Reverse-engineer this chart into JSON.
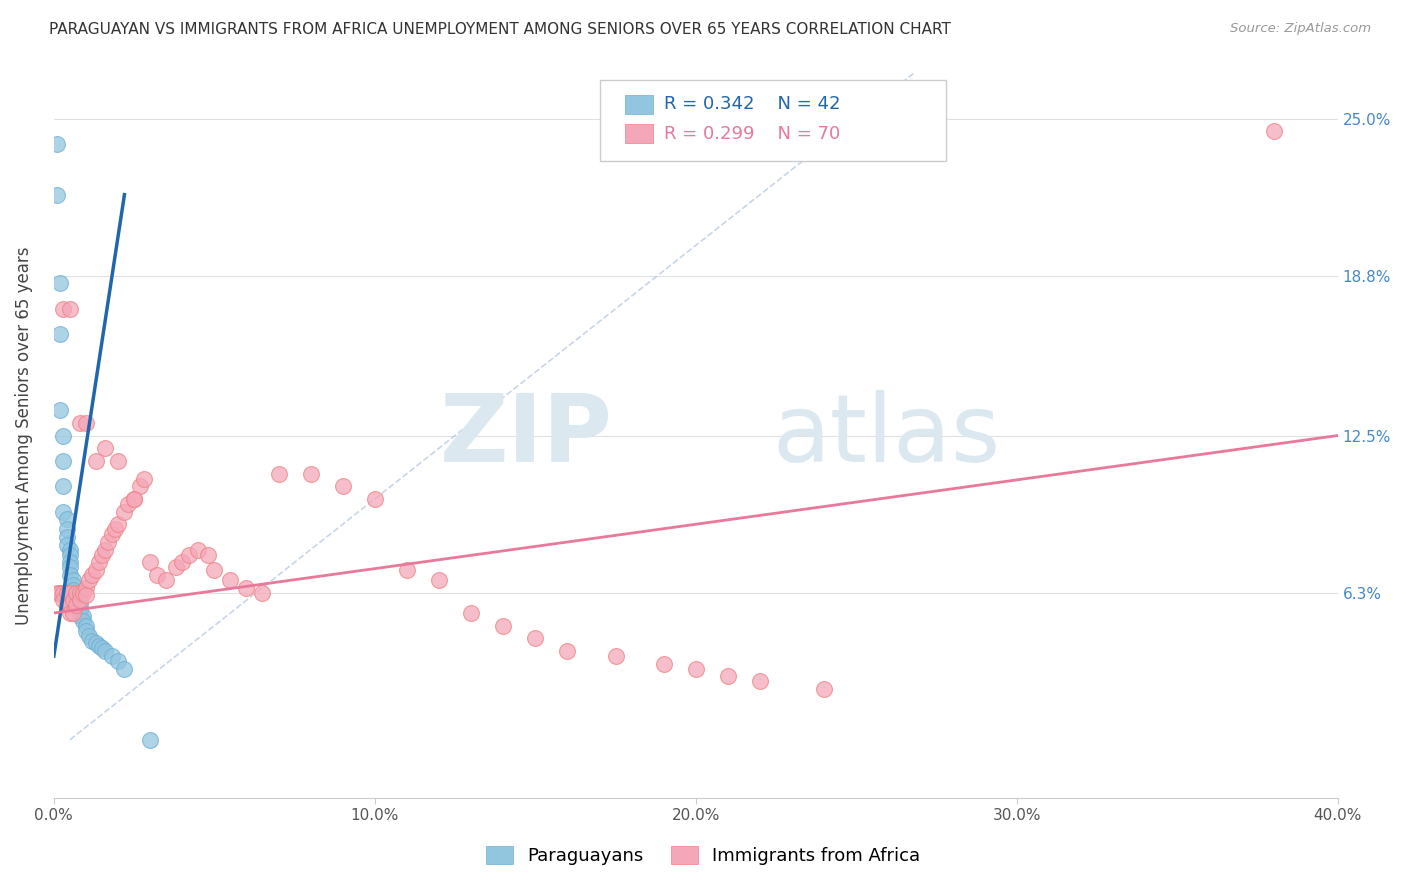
{
  "title": "PARAGUAYAN VS IMMIGRANTS FROM AFRICA UNEMPLOYMENT AMONG SENIORS OVER 65 YEARS CORRELATION CHART",
  "source": "Source: ZipAtlas.com",
  "ylabel": "Unemployment Among Seniors over 65 years",
  "ytick_labels": [
    "6.3%",
    "12.5%",
    "18.8%",
    "25.0%"
  ],
  "ytick_values": [
    0.063,
    0.125,
    0.188,
    0.25
  ],
  "xlim": [
    0.0,
    0.4
  ],
  "ylim": [
    -0.018,
    0.268
  ],
  "xtick_positions": [
    0.0,
    0.1,
    0.2,
    0.3,
    0.4
  ],
  "xtick_labels": [
    "0.0%",
    "10.0%",
    "20.0%",
    "30.0%",
    "40.0%"
  ],
  "legend_blue_r": "R = 0.342",
  "legend_blue_n": "N = 42",
  "legend_pink_r": "R = 0.299",
  "legend_pink_n": "N = 70",
  "legend_blue_label": "Paraguayans",
  "legend_pink_label": "Immigrants from Africa",
  "watermark_zip": "ZIP",
  "watermark_atlas": "atlas",
  "blue_color": "#92c5de",
  "pink_color": "#f4a7b9",
  "blue_line_color": "#2166ac",
  "pink_line_color": "#e8799a",
  "dash_line_color": "#b0c4de",
  "grid_color": "#e0e0e0",
  "bg_color": "#ffffff",
  "blue_scatter_x": [
    0.001,
    0.001,
    0.002,
    0.002,
    0.002,
    0.003,
    0.003,
    0.003,
    0.003,
    0.004,
    0.004,
    0.004,
    0.004,
    0.005,
    0.005,
    0.005,
    0.005,
    0.005,
    0.006,
    0.006,
    0.006,
    0.006,
    0.007,
    0.007,
    0.007,
    0.008,
    0.008,
    0.008,
    0.009,
    0.009,
    0.01,
    0.01,
    0.011,
    0.012,
    0.013,
    0.014,
    0.015,
    0.016,
    0.018,
    0.02,
    0.022,
    0.03
  ],
  "blue_scatter_y": [
    0.24,
    0.22,
    0.185,
    0.165,
    0.135,
    0.125,
    0.115,
    0.105,
    0.095,
    0.092,
    0.088,
    0.085,
    0.082,
    0.08,
    0.078,
    0.075,
    0.073,
    0.07,
    0.068,
    0.066,
    0.064,
    0.062,
    0.062,
    0.06,
    0.058,
    0.058,
    0.056,
    0.054,
    0.054,
    0.052,
    0.05,
    0.048,
    0.046,
    0.044,
    0.043,
    0.042,
    0.041,
    0.04,
    0.038,
    0.036,
    0.033,
    0.005
  ],
  "pink_scatter_x": [
    0.001,
    0.002,
    0.003,
    0.003,
    0.004,
    0.004,
    0.005,
    0.005,
    0.005,
    0.006,
    0.006,
    0.007,
    0.007,
    0.008,
    0.008,
    0.009,
    0.01,
    0.01,
    0.011,
    0.012,
    0.013,
    0.014,
    0.015,
    0.016,
    0.017,
    0.018,
    0.019,
    0.02,
    0.022,
    0.023,
    0.025,
    0.027,
    0.028,
    0.03,
    0.032,
    0.035,
    0.038,
    0.04,
    0.042,
    0.045,
    0.048,
    0.05,
    0.055,
    0.06,
    0.065,
    0.07,
    0.08,
    0.09,
    0.1,
    0.11,
    0.12,
    0.13,
    0.14,
    0.15,
    0.16,
    0.175,
    0.19,
    0.2,
    0.21,
    0.22,
    0.24,
    0.003,
    0.005,
    0.008,
    0.01,
    0.013,
    0.016,
    0.02,
    0.025,
    0.38
  ],
  "pink_scatter_y": [
    0.063,
    0.063,
    0.063,
    0.06,
    0.063,
    0.058,
    0.063,
    0.058,
    0.055,
    0.06,
    0.055,
    0.063,
    0.058,
    0.063,
    0.06,
    0.063,
    0.065,
    0.062,
    0.068,
    0.07,
    0.072,
    0.075,
    0.078,
    0.08,
    0.083,
    0.086,
    0.088,
    0.09,
    0.095,
    0.098,
    0.1,
    0.105,
    0.108,
    0.075,
    0.07,
    0.068,
    0.073,
    0.075,
    0.078,
    0.08,
    0.078,
    0.072,
    0.068,
    0.065,
    0.063,
    0.11,
    0.11,
    0.105,
    0.1,
    0.072,
    0.068,
    0.055,
    0.05,
    0.045,
    0.04,
    0.038,
    0.035,
    0.033,
    0.03,
    0.028,
    0.025,
    0.175,
    0.175,
    0.13,
    0.13,
    0.115,
    0.12,
    0.115,
    0.1,
    0.245
  ],
  "blue_line_x": [
    0.0,
    0.022
  ],
  "blue_line_y_start": 0.038,
  "blue_line_y_end": 0.22,
  "pink_line_x": [
    0.0,
    0.4
  ],
  "pink_line_y_start": 0.055,
  "pink_line_y_end": 0.125,
  "dash_line_x": [
    0.005,
    0.268
  ],
  "dash_line_y": [
    0.005,
    0.268
  ]
}
